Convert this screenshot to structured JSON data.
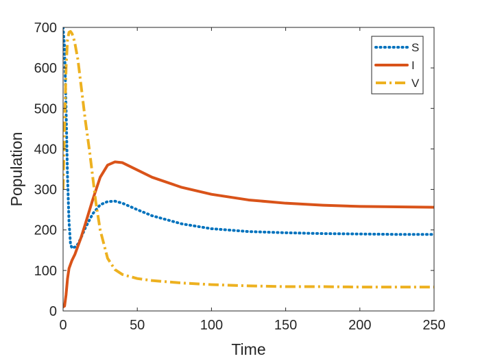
{
  "chart_data": {
    "type": "line",
    "title": "",
    "xlabel": "Time",
    "ylabel": "Population",
    "xlim": [
      0,
      250
    ],
    "ylim": [
      0,
      700
    ],
    "xticks": [
      0,
      50,
      100,
      150,
      200,
      250
    ],
    "yticks": [
      0,
      100,
      200,
      300,
      400,
      500,
      600,
      700
    ],
    "xtick_labels": [
      "0",
      "50",
      "100",
      "150",
      "200",
      "250"
    ],
    "ytick_labels": [
      "0",
      "100",
      "200",
      "300",
      "400",
      "500",
      "600",
      "700"
    ],
    "grid": false,
    "legend_position": "top-right",
    "series": [
      {
        "name": "S",
        "color": "#0072BD",
        "style": "dotted",
        "x": [
          0,
          1,
          2,
          3,
          4,
          5,
          6,
          8,
          10,
          12,
          15,
          20,
          25,
          30,
          35,
          40,
          50,
          60,
          80,
          100,
          125,
          150,
          175,
          200,
          225,
          250
        ],
        "y": [
          700,
          650,
          500,
          330,
          220,
          165,
          155,
          158,
          165,
          180,
          205,
          240,
          262,
          270,
          271,
          266,
          250,
          235,
          215,
          203,
          196,
          193,
          191,
          190,
          189,
          189
        ]
      },
      {
        "name": "I",
        "color": "#D95319",
        "style": "solid",
        "x": [
          0,
          1,
          2,
          3,
          4,
          5,
          6,
          8,
          10,
          12,
          15,
          20,
          25,
          30,
          35,
          40,
          50,
          60,
          80,
          100,
          125,
          150,
          175,
          200,
          225,
          250
        ],
        "y": [
          10,
          12,
          40,
          80,
          105,
          115,
          125,
          140,
          160,
          180,
          215,
          275,
          330,
          360,
          368,
          366,
          348,
          330,
          305,
          288,
          274,
          266,
          261,
          258,
          257,
          256
        ]
      },
      {
        "name": "V",
        "color": "#EDB120",
        "style": "dash-dot",
        "x": [
          0,
          1,
          2,
          3,
          4,
          5,
          6,
          7,
          8,
          10,
          12,
          15,
          18,
          20,
          22,
          25,
          30,
          35,
          40,
          50,
          60,
          80,
          100,
          125,
          150,
          175,
          200,
          225,
          250
        ],
        "y": [
          300,
          450,
          600,
          670,
          688,
          690,
          685,
          675,
          660,
          620,
          560,
          470,
          390,
          330,
          270,
          200,
          130,
          102,
          90,
          80,
          75,
          69,
          65,
          62,
          60,
          60,
          59,
          59,
          59
        ]
      }
    ]
  }
}
